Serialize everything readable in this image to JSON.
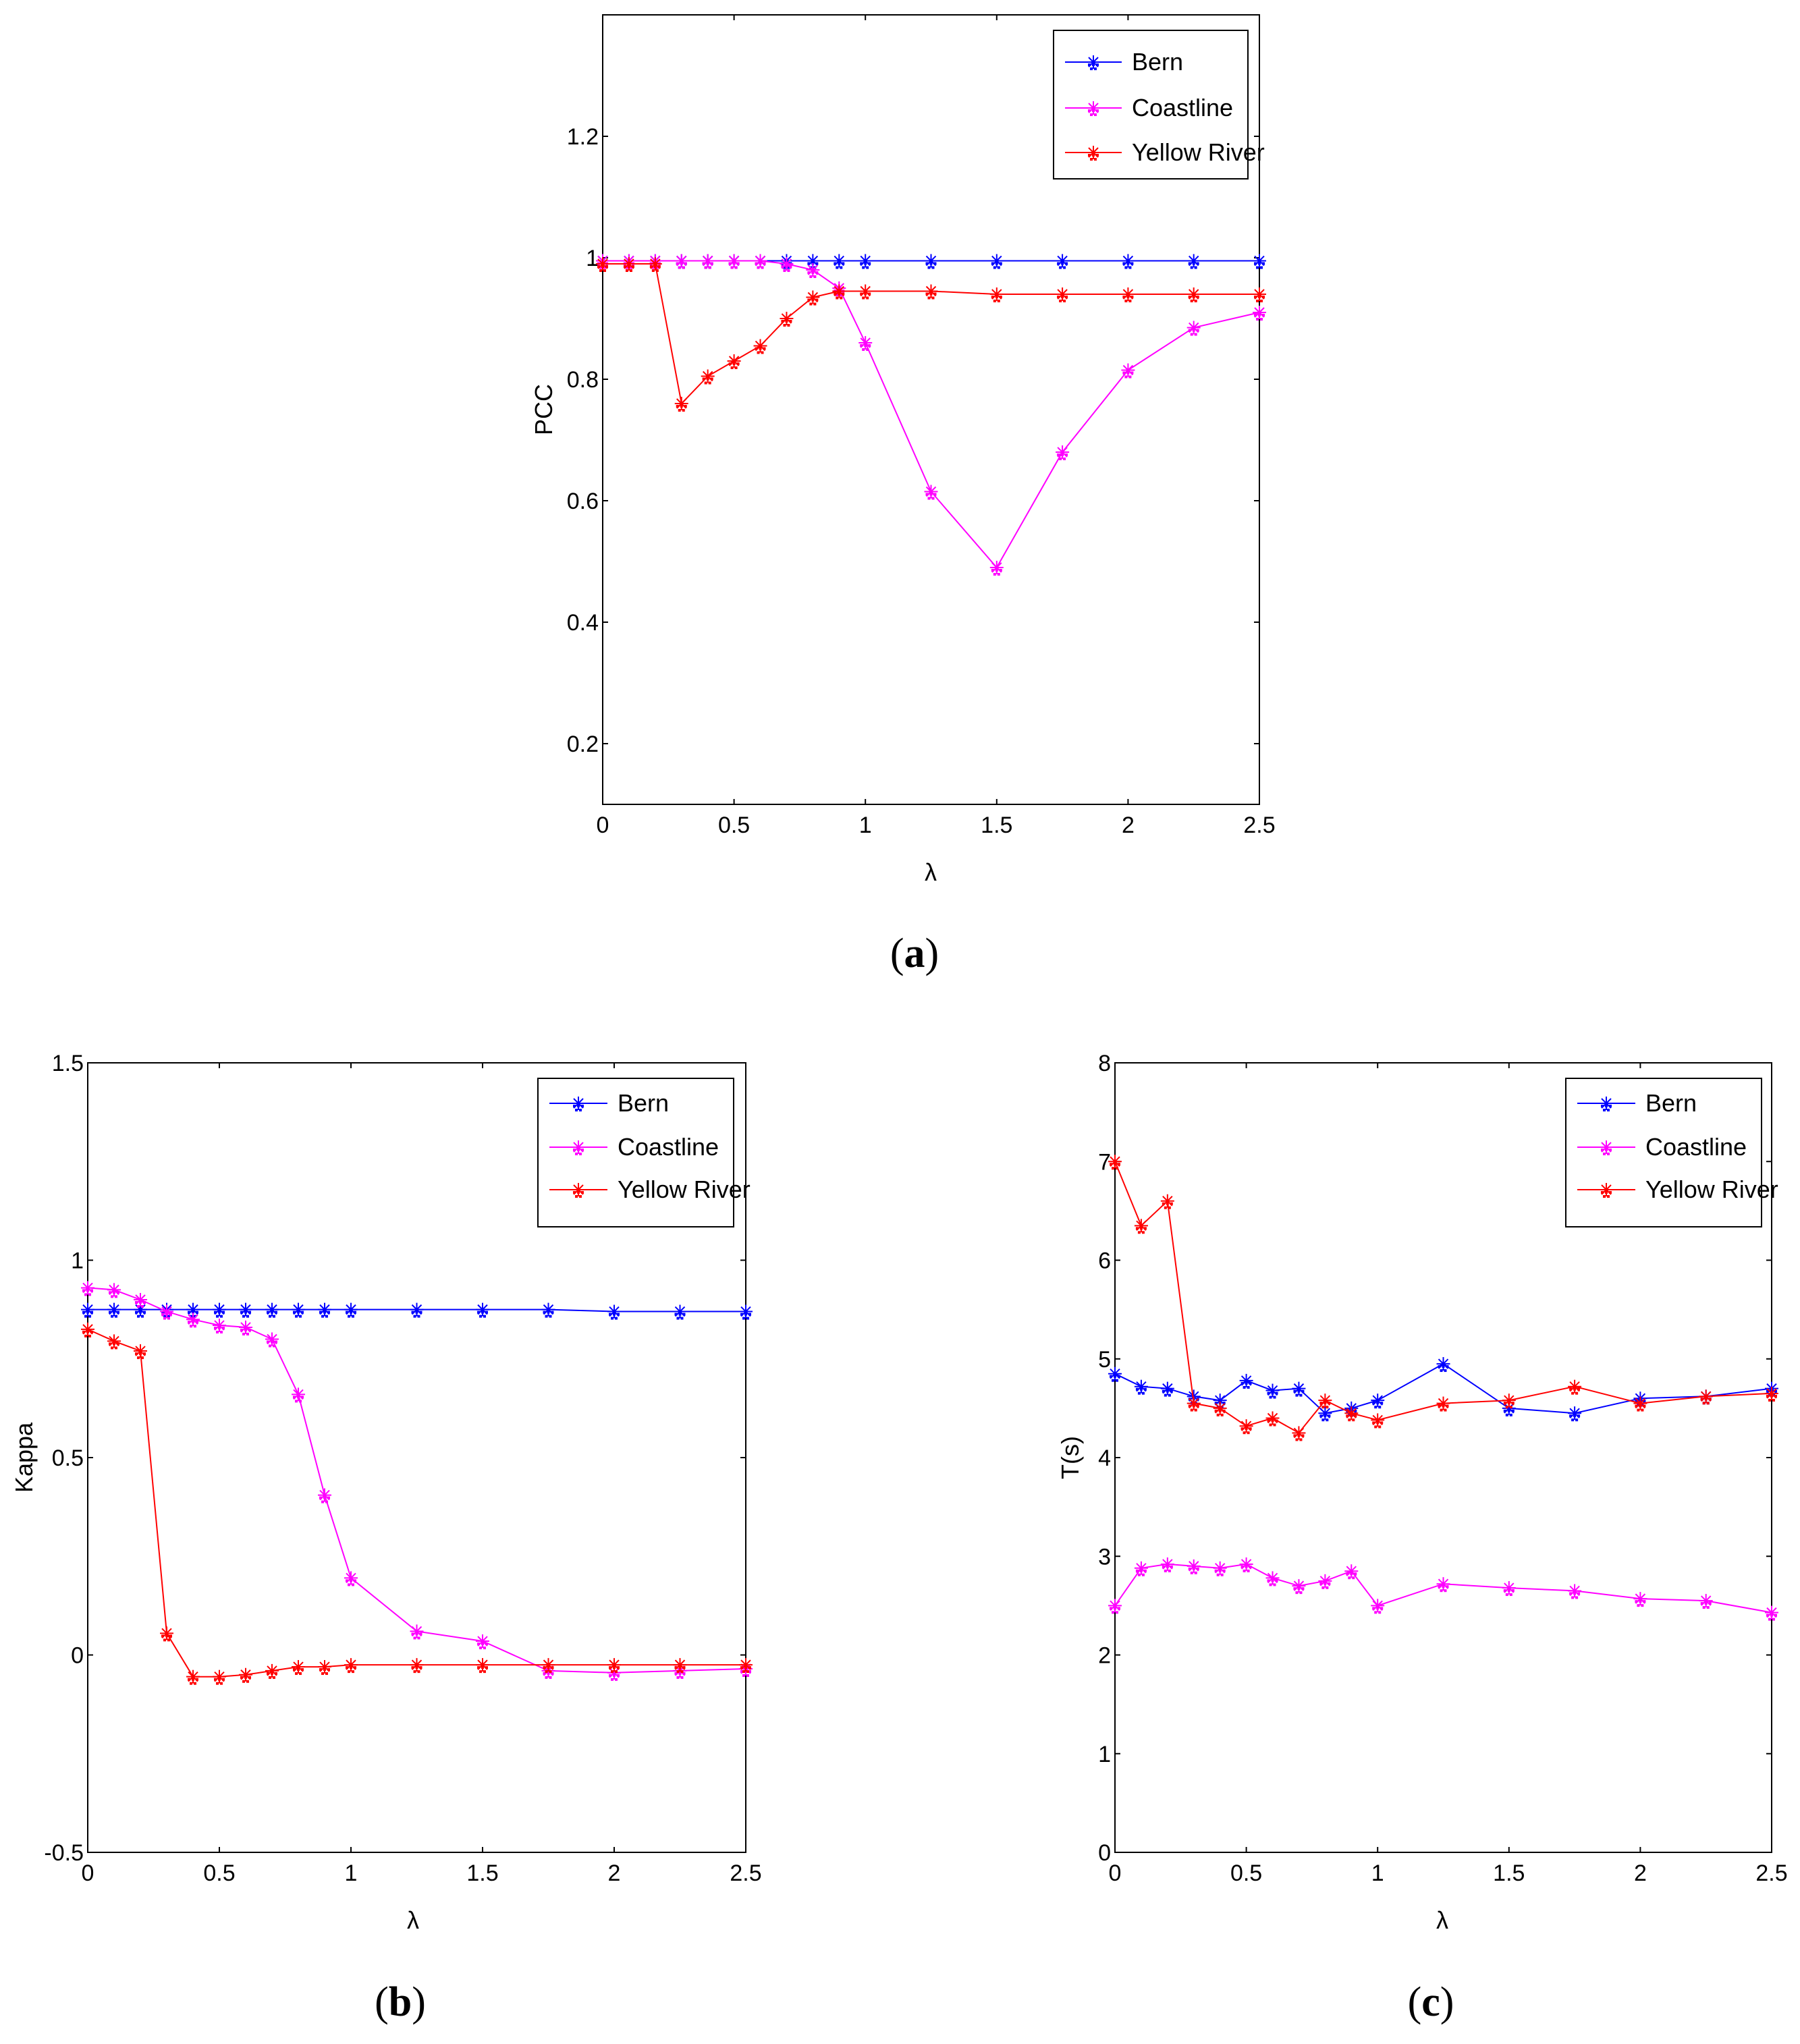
{
  "legend_entries": [
    "Bern",
    "Coastline",
    "Yellow River"
  ],
  "series_colors": {
    "Bern": "#0000ff",
    "Coastline": "#ff00ff",
    "Yellow River": "#ff0000"
  },
  "chart_data": [
    {
      "id": "a",
      "type": "line",
      "caption_letter": "a",
      "xlabel": "λ",
      "ylabel": "PCC",
      "xlim": [
        0,
        2.5
      ],
      "ylim": [
        0.1,
        1.4
      ],
      "xticks": [
        0,
        0.5,
        1,
        1.5,
        2,
        2.5
      ],
      "xtick_labels": [
        "0",
        "0.5",
        "1",
        "1.5",
        "2",
        "2.5"
      ],
      "yticks": [
        0.2,
        0.4,
        0.6,
        0.8,
        1,
        1.2
      ],
      "ytick_labels": [
        "0.2",
        "0.4",
        "0.6",
        "0.8",
        "1",
        "1.2"
      ],
      "legend_position": "top-right",
      "x": [
        0,
        0.1,
        0.2,
        0.3,
        0.4,
        0.5,
        0.6,
        0.7,
        0.8,
        0.9,
        1,
        1.25,
        1.5,
        1.75,
        2,
        2.25,
        2.5
      ],
      "series": [
        {
          "name": "Bern",
          "values": [
            0.995,
            0.995,
            0.995,
            0.995,
            0.995,
            0.995,
            0.995,
            0.995,
            0.995,
            0.995,
            0.995,
            0.995,
            0.995,
            0.995,
            0.995,
            0.995,
            0.995
          ]
        },
        {
          "name": "Coastline",
          "values": [
            0.995,
            0.995,
            0.995,
            0.995,
            0.995,
            0.995,
            0.995,
            0.99,
            0.98,
            0.95,
            0.86,
            0.615,
            0.49,
            0.68,
            0.815,
            0.885,
            0.91
          ]
        },
        {
          "name": "Yellow River",
          "values": [
            0.99,
            0.99,
            0.99,
            0.76,
            0.805,
            0.83,
            0.855,
            0.9,
            0.935,
            0.945,
            0.945,
            0.945,
            0.94,
            0.94,
            0.94,
            0.94,
            0.94
          ]
        }
      ]
    },
    {
      "id": "b",
      "type": "line",
      "caption_letter": "b",
      "xlabel": "λ",
      "ylabel": "Kappa",
      "xlim": [
        0,
        2.5
      ],
      "ylim": [
        -0.5,
        1.5
      ],
      "xticks": [
        0,
        0.5,
        1,
        1.5,
        2,
        2.5
      ],
      "xtick_labels": [
        "0",
        "0.5",
        "1",
        "1.5",
        "2",
        "2.5"
      ],
      "yticks": [
        -0.5,
        0,
        0.5,
        1,
        1.5
      ],
      "ytick_labels": [
        "-0.5",
        "0",
        "0.5",
        "1",
        "1.5"
      ],
      "legend_position": "top-right",
      "x": [
        0,
        0.1,
        0.2,
        0.3,
        0.4,
        0.5,
        0.6,
        0.7,
        0.8,
        0.9,
        1,
        1.25,
        1.5,
        1.75,
        2,
        2.25,
        2.5
      ],
      "series": [
        {
          "name": "Bern",
          "values": [
            0.875,
            0.875,
            0.875,
            0.875,
            0.875,
            0.875,
            0.875,
            0.875,
            0.875,
            0.875,
            0.875,
            0.875,
            0.875,
            0.875,
            0.87,
            0.87,
            0.87
          ]
        },
        {
          "name": "Coastline",
          "values": [
            0.93,
            0.925,
            0.9,
            0.87,
            0.85,
            0.835,
            0.83,
            0.8,
            0.66,
            0.405,
            0.195,
            0.06,
            0.035,
            -0.04,
            -0.045,
            -0.04,
            -0.035
          ]
        },
        {
          "name": "Yellow River",
          "values": [
            0.825,
            0.795,
            0.77,
            0.055,
            -0.055,
            -0.055,
            -0.05,
            -0.04,
            -0.03,
            -0.03,
            -0.025,
            -0.025,
            -0.025,
            -0.025,
            -0.025,
            -0.025,
            -0.025
          ]
        }
      ]
    },
    {
      "id": "c",
      "type": "line",
      "caption_letter": "c",
      "xlabel": "λ",
      "ylabel": "T(s)",
      "xlim": [
        0,
        2.5
      ],
      "ylim": [
        0,
        8
      ],
      "xticks": [
        0,
        0.5,
        1,
        1.5,
        2,
        2.5
      ],
      "xtick_labels": [
        "0",
        "0.5",
        "1",
        "1.5",
        "2",
        "2.5"
      ],
      "yticks": [
        0,
        1,
        2,
        3,
        4,
        5,
        6,
        7,
        8
      ],
      "ytick_labels": [
        "0",
        "1",
        "2",
        "3",
        "4",
        "5",
        "6",
        "7",
        "8"
      ],
      "legend_position": "top-right",
      "x": [
        0,
        0.1,
        0.2,
        0.3,
        0.4,
        0.5,
        0.6,
        0.7,
        0.8,
        0.9,
        1,
        1.25,
        1.5,
        1.75,
        2,
        2.25,
        2.5
      ],
      "series": [
        {
          "name": "Bern",
          "values": [
            4.85,
            4.72,
            4.7,
            4.62,
            4.58,
            4.78,
            4.68,
            4.7,
            4.45,
            4.5,
            4.58,
            4.95,
            4.5,
            4.45,
            4.6,
            4.62,
            4.7
          ]
        },
        {
          "name": "Coastline",
          "values": [
            2.5,
            2.88,
            2.92,
            2.9,
            2.88,
            2.92,
            2.78,
            2.7,
            2.75,
            2.85,
            2.5,
            2.72,
            2.68,
            2.65,
            2.57,
            2.55,
            2.43
          ]
        },
        {
          "name": "Yellow River",
          "values": [
            7.0,
            6.35,
            6.6,
            4.55,
            4.5,
            4.32,
            4.4,
            4.25,
            4.58,
            4.45,
            4.38,
            4.55,
            4.58,
            4.72,
            4.55,
            4.62,
            4.65
          ]
        }
      ]
    }
  ]
}
